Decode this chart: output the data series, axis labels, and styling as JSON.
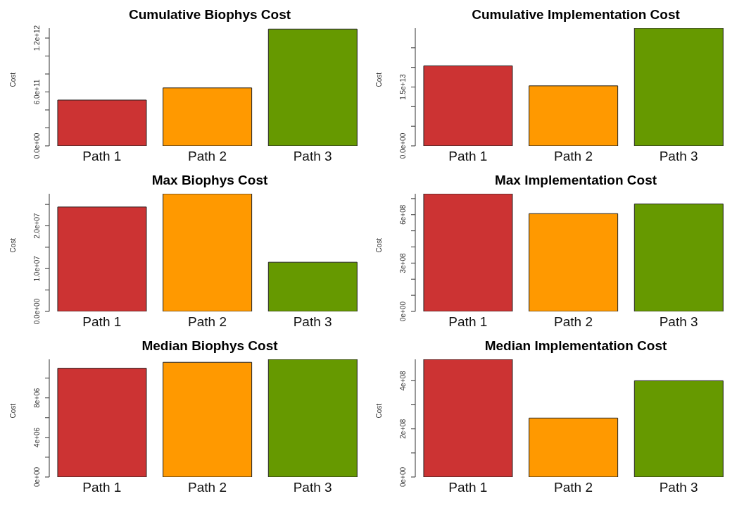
{
  "chart_data": [
    {
      "type": "bar",
      "title": "Cumulative Biophys Cost",
      "ylabel": "Cost",
      "categories": [
        "Path 1",
        "Path 2",
        "Path 3"
      ],
      "values": [
        510000000000,
        645000000000,
        1300000000000
      ],
      "colors": [
        "#cc3333",
        "#ff9900",
        "#669900"
      ],
      "ylim": [
        0,
        1310000000000
      ],
      "yticks": [
        {
          "value": 0,
          "label": "0.0e+00"
        },
        {
          "value": 200000000000,
          "label": null
        },
        {
          "value": 400000000000,
          "label": null
        },
        {
          "value": 600000000000,
          "label": "6.0e+11"
        },
        {
          "value": 800000000000,
          "label": null
        },
        {
          "value": 1000000000000,
          "label": null
        },
        {
          "value": 1200000000000,
          "label": "1.2e+12"
        }
      ]
    },
    {
      "type": "bar",
      "title": "Cumulative Implementation Cost",
      "ylabel": "Cost",
      "categories": [
        "Path 1",
        "Path 2",
        "Path 3"
      ],
      "values": [
        20400000000000,
        15300000000000,
        30000000000000
      ],
      "colors": [
        "#cc3333",
        "#ff9900",
        "#669900"
      ],
      "ylim": [
        0,
        30000000000000
      ],
      "yticks": [
        {
          "value": 0,
          "label": "0.0e+00"
        },
        {
          "value": 5000000000000,
          "label": null
        },
        {
          "value": 10000000000000,
          "label": null
        },
        {
          "value": 15000000000000,
          "label": "1.5e+13"
        },
        {
          "value": 20000000000000,
          "label": null
        },
        {
          "value": 25000000000000,
          "label": null
        }
      ]
    },
    {
      "type": "bar",
      "title": "Max Biophys Cost",
      "ylabel": "Cost",
      "categories": [
        "Path 1",
        "Path 2",
        "Path 3"
      ],
      "values": [
        24400000,
        27500000,
        11500000
      ],
      "colors": [
        "#cc3333",
        "#ff9900",
        "#669900"
      ],
      "ylim": [
        0,
        27500000
      ],
      "yticks": [
        {
          "value": 0,
          "label": "0.0e+00"
        },
        {
          "value": 5000000,
          "label": null
        },
        {
          "value": 10000000,
          "label": "1.0e+07"
        },
        {
          "value": 15000000,
          "label": null
        },
        {
          "value": 20000000,
          "label": "2.0e+07"
        },
        {
          "value": 25000000,
          "label": null
        }
      ]
    },
    {
      "type": "bar",
      "title": "Max Implementation Cost",
      "ylabel": "Cost",
      "categories": [
        "Path 1",
        "Path 2",
        "Path 3"
      ],
      "values": [
        730000000,
        607000000,
        667000000
      ],
      "colors": [
        "#cc3333",
        "#ff9900",
        "#669900"
      ],
      "ylim": [
        0,
        730000000
      ],
      "yticks": [
        {
          "value": 0,
          "label": "0e+00"
        },
        {
          "value": 100000000,
          "label": null
        },
        {
          "value": 200000000,
          "label": null
        },
        {
          "value": 300000000,
          "label": "3e+08"
        },
        {
          "value": 400000000,
          "label": null
        },
        {
          "value": 500000000,
          "label": null
        },
        {
          "value": 600000000,
          "label": "6e+08"
        },
        {
          "value": 700000000,
          "label": null
        }
      ]
    },
    {
      "type": "bar",
      "title": "Median Biophys Cost",
      "ylabel": "Cost",
      "categories": [
        "Path 1",
        "Path 2",
        "Path 3"
      ],
      "values": [
        11000000,
        11600000,
        11900000
      ],
      "colors": [
        "#cc3333",
        "#ff9900",
        "#669900"
      ],
      "ylim": [
        0,
        11900000
      ],
      "yticks": [
        {
          "value": 0,
          "label": "0e+00"
        },
        {
          "value": 2000000,
          "label": null
        },
        {
          "value": 4000000,
          "label": "4e+06"
        },
        {
          "value": 6000000,
          "label": null
        },
        {
          "value": 8000000,
          "label": "8e+06"
        },
        {
          "value": 10000000,
          "label": null
        }
      ]
    },
    {
      "type": "bar",
      "title": "Median Implementation Cost",
      "ylabel": "Cost",
      "categories": [
        "Path 1",
        "Path 2",
        "Path 3"
      ],
      "values": [
        489000000,
        245000000,
        400000000
      ],
      "colors": [
        "#cc3333",
        "#ff9900",
        "#669900"
      ],
      "ylim": [
        0,
        489000000
      ],
      "yticks": [
        {
          "value": 0,
          "label": "0e+00"
        },
        {
          "value": 100000000,
          "label": null
        },
        {
          "value": 200000000,
          "label": "2e+08"
        },
        {
          "value": 300000000,
          "label": null
        },
        {
          "value": 400000000,
          "label": "4e+08"
        }
      ]
    }
  ]
}
